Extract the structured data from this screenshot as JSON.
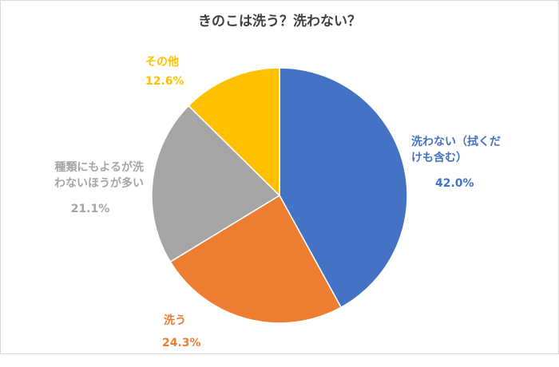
{
  "chart_data": {
    "type": "pie",
    "title": "きのこは洗う？洗わない？",
    "slices": [
      {
        "label": "洗わない（拭くだ\nけも含む）",
        "value": 42.0,
        "value_label": "42.0%",
        "color": "#4472c4"
      },
      {
        "label": "洗う",
        "value": 24.3,
        "value_label": "24.3%",
        "color": "#ed7d31"
      },
      {
        "label": "種類にもよるが洗\nわないほうが多い",
        "value": 21.1,
        "value_label": "21.1%",
        "color": "#a5a5a5"
      },
      {
        "label": "その他",
        "value": 12.6,
        "value_label": "12.6%",
        "color": "#ffc000"
      }
    ],
    "start": "12 o'clock",
    "direction": "clockwise",
    "legend": "none"
  }
}
